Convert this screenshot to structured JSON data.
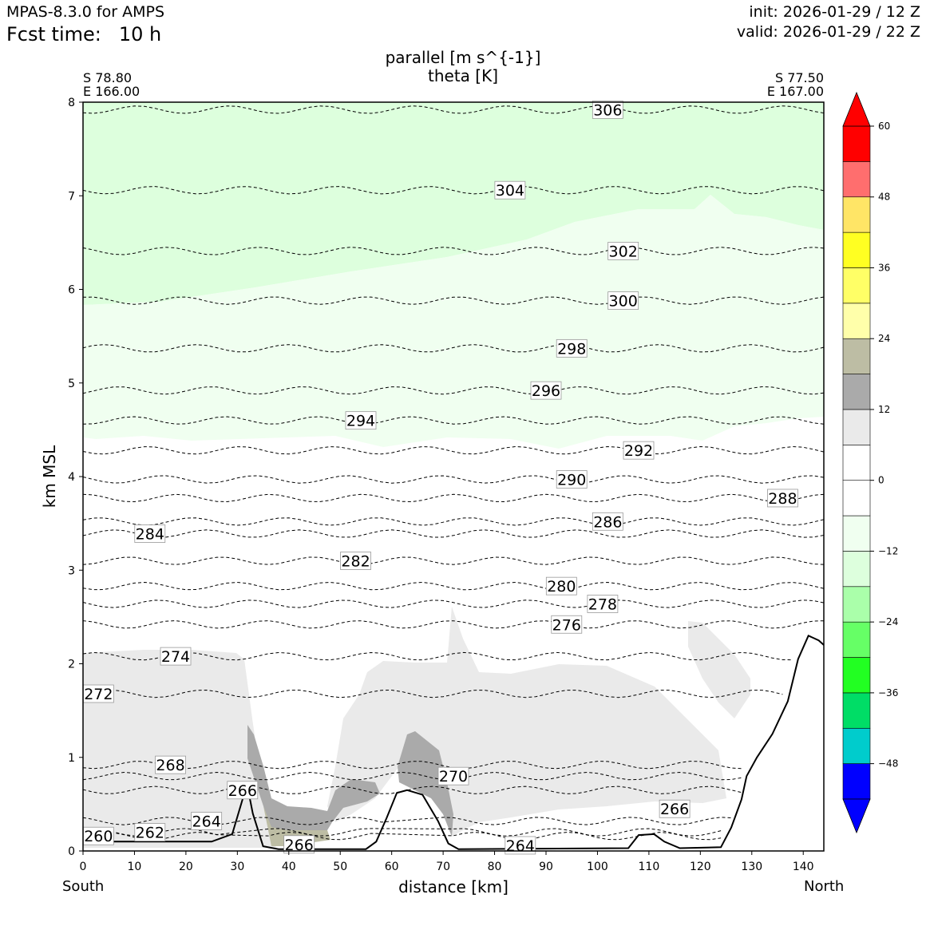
{
  "header": {
    "model": "MPAS-8.3.0 for AMPS",
    "fcst_label": "Fcst time:",
    "fcst_value": "10 h",
    "init": "init: 2026-01-29 / 12 Z",
    "valid": "valid: 2026-01-29 / 22 Z"
  },
  "chart_data": {
    "type": "contour_cross_section",
    "title": [
      "parallel [m s^{-1}]",
      "theta [K]"
    ],
    "xlabel": "distance [km]",
    "ylabel": "km MSL",
    "xlim": [
      0,
      144
    ],
    "ylim": [
      0,
      8
    ],
    "xticks": [
      0,
      10,
      20,
      30,
      40,
      50,
      60,
      70,
      80,
      90,
      100,
      110,
      120,
      130,
      140
    ],
    "yticks": [
      0,
      1,
      2,
      3,
      4,
      5,
      6,
      7,
      8
    ],
    "start_point": {
      "lat": "S 78.80",
      "lon": "E 166.00"
    },
    "end_point": {
      "lat": "S 77.50",
      "lon": "E 167.00"
    },
    "x_side_labels": {
      "left": "South",
      "right": "North"
    },
    "colorbar": {
      "levels": [
        -54,
        -48,
        -42,
        -36,
        -30,
        -24,
        -18,
        -12,
        -6,
        0,
        6,
        12,
        18,
        24,
        30,
        36,
        42,
        48,
        54,
        60
      ],
      "tick_labels": [
        "−48",
        "−36",
        "−24",
        "−12",
        "0",
        "12",
        "24",
        "36",
        "48",
        "60"
      ],
      "tick_values": [
        -48,
        -36,
        -24,
        -12,
        0,
        12,
        24,
        36,
        48,
        60
      ],
      "colors": [
        "#0000ff",
        "#00cccc",
        "#00dd66",
        "#22ff22",
        "#66ff66",
        "#aaffaa",
        "#ddffdd",
        "#f0fff0",
        "#ffffff",
        "#ffffff",
        "#eaeaea",
        "#aaaaaa",
        "#bdbda4",
        "#ffffaa",
        "#ffff66",
        "#ffff22",
        "#ffe566",
        "#ff6e6e",
        "#ff0000"
      ],
      "extend_low_color": "#0000ff",
      "extend_high_color": "#ff0000"
    },
    "terrain_km": [
      [
        0,
        0.1
      ],
      [
        25,
        0.1
      ],
      [
        29,
        0.18
      ],
      [
        31,
        0.55
      ],
      [
        32,
        0.68
      ],
      [
        33,
        0.4
      ],
      [
        35,
        0.05
      ],
      [
        38,
        0.02
      ],
      [
        55,
        0.02
      ],
      [
        57,
        0.1
      ],
      [
        59,
        0.35
      ],
      [
        61,
        0.62
      ],
      [
        63,
        0.65
      ],
      [
        66,
        0.6
      ],
      [
        69,
        0.32
      ],
      [
        71,
        0.08
      ],
      [
        73,
        0.02
      ],
      [
        106,
        0.03
      ],
      [
        108,
        0.17
      ],
      [
        111,
        0.18
      ],
      [
        113,
        0.1
      ],
      [
        116,
        0.03
      ],
      [
        124,
        0.04
      ],
      [
        126,
        0.25
      ],
      [
        128,
        0.55
      ],
      [
        129,
        0.8
      ],
      [
        131,
        1.0
      ],
      [
        134,
        1.25
      ],
      [
        137,
        1.6
      ],
      [
        139,
        2.05
      ],
      [
        141,
        2.3
      ],
      [
        143,
        2.25
      ],
      [
        144,
        2.2
      ]
    ],
    "theta_contour_labels": [
      {
        "value": "306",
        "x": 102,
        "y": 7.92
      },
      {
        "value": "304",
        "x": 83,
        "y": 7.06
      },
      {
        "value": "302",
        "x": 105,
        "y": 6.41
      },
      {
        "value": "300",
        "x": 105,
        "y": 5.88
      },
      {
        "value": "298",
        "x": 95,
        "y": 5.37
      },
      {
        "value": "296",
        "x": 90,
        "y": 4.92
      },
      {
        "value": "294",
        "x": 54,
        "y": 4.6
      },
      {
        "value": "292",
        "x": 108,
        "y": 4.28
      },
      {
        "value": "290",
        "x": 95,
        "y": 3.97
      },
      {
        "value": "288",
        "x": 136,
        "y": 3.77
      },
      {
        "value": "286",
        "x": 102,
        "y": 3.52
      },
      {
        "value": "284",
        "x": 13,
        "y": 3.39
      },
      {
        "value": "282",
        "x": 53,
        "y": 3.1
      },
      {
        "value": "280",
        "x": 93,
        "y": 2.83
      },
      {
        "value": "278",
        "x": 101,
        "y": 2.64
      },
      {
        "value": "276",
        "x": 94,
        "y": 2.42
      },
      {
        "value": "274",
        "x": 18,
        "y": 2.08
      },
      {
        "value": "272",
        "x": 3,
        "y": 1.68
      },
      {
        "value": "270",
        "x": 72,
        "y": 0.8
      },
      {
        "value": "268",
        "x": 17,
        "y": 0.92
      },
      {
        "value": "266",
        "x": 31,
        "y": 0.65
      },
      {
        "value": "266",
        "x": 115,
        "y": 0.45
      },
      {
        "value": "264",
        "x": 24,
        "y": 0.32
      },
      {
        "value": "264",
        "x": 85,
        "y": 0.06
      },
      {
        "value": "262",
        "x": 13,
        "y": 0.2
      },
      {
        "value": "260",
        "x": 3,
        "y": 0.16
      },
      {
        "value": "266",
        "x": 42,
        "y": 0.07
      }
    ]
  }
}
